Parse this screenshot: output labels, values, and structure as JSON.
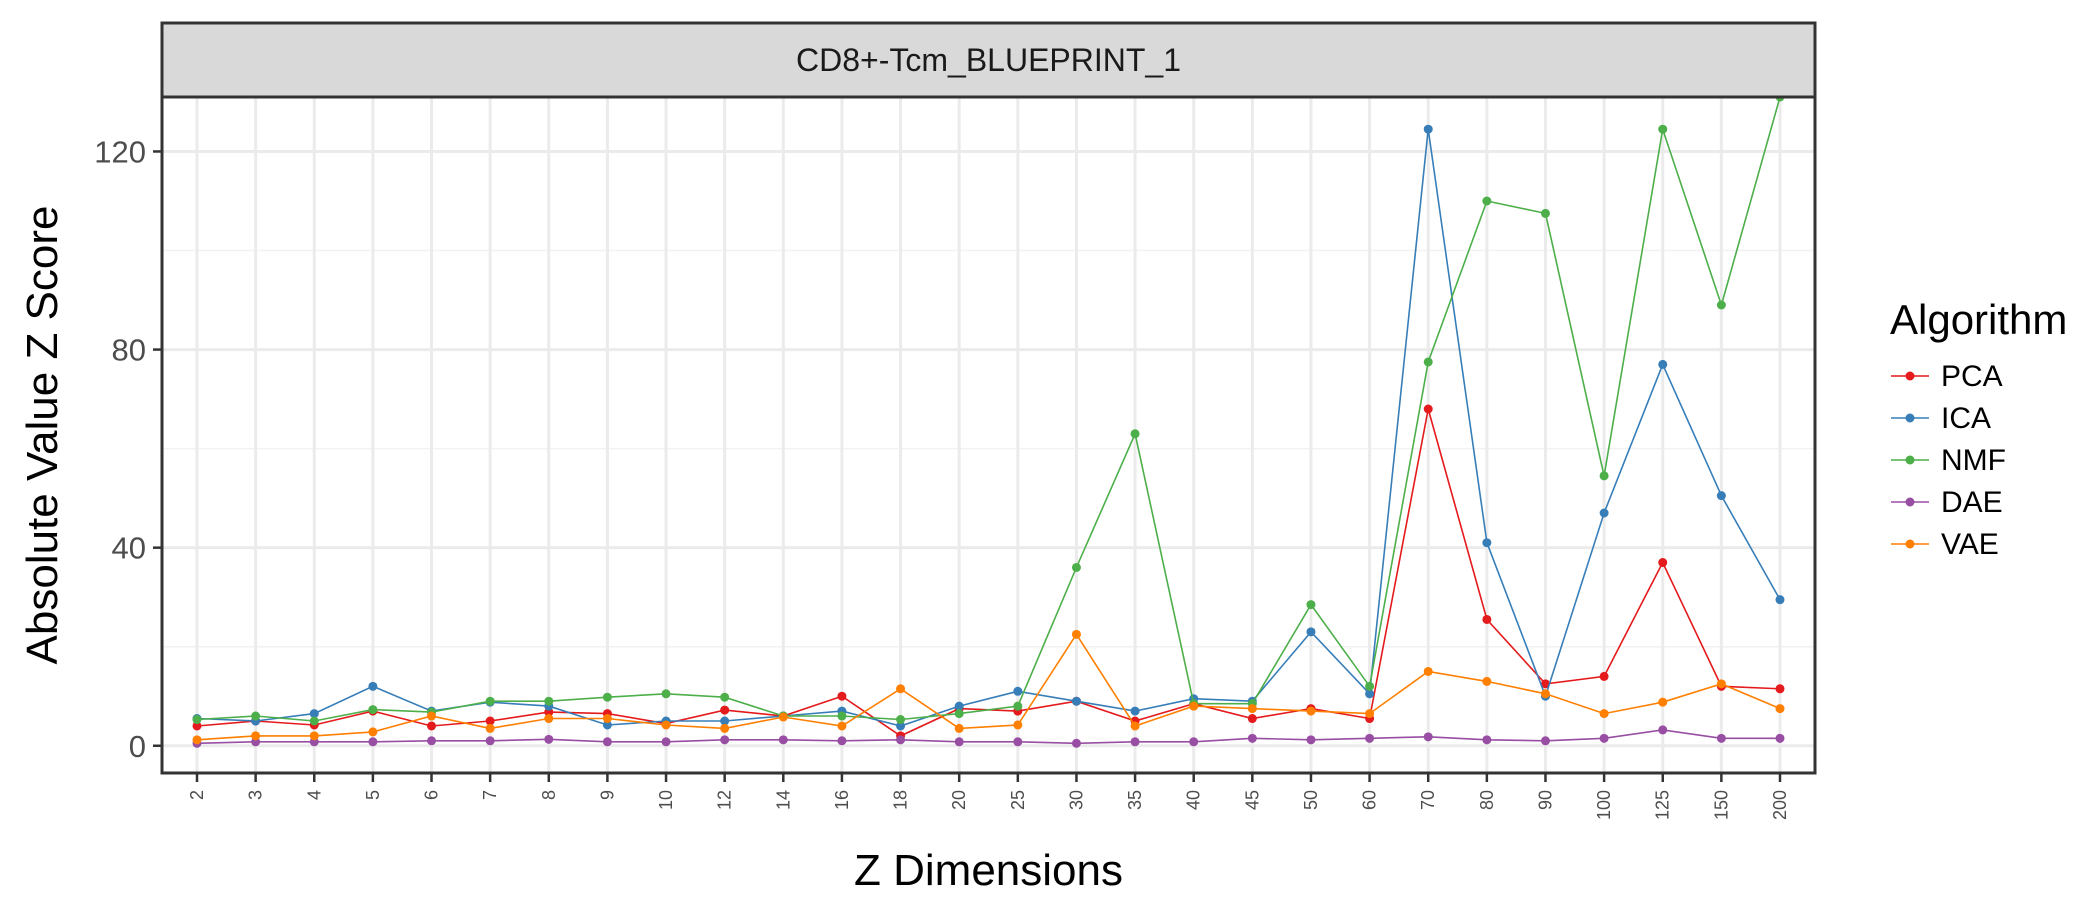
{
  "chart_data": {
    "type": "line",
    "title": "CD8+-Tcm_BLUEPRINT_1",
    "xlabel": "Z Dimensions",
    "ylabel": "Absolute Value Z Score",
    "categories": [
      "2",
      "3",
      "4",
      "5",
      "6",
      "7",
      "8",
      "9",
      "10",
      "12",
      "14",
      "16",
      "18",
      "20",
      "25",
      "30",
      "35",
      "40",
      "45",
      "50",
      "60",
      "70",
      "80",
      "90",
      "100",
      "125",
      "150",
      "200"
    ],
    "ylim": [
      -5.5,
      131
    ],
    "yticks": [
      0,
      40,
      80,
      120
    ],
    "grid": true,
    "legend": {
      "title": "Algorithm",
      "position": "right"
    },
    "series": [
      {
        "name": "PCA",
        "color": "#e41a1c",
        "values": [
          4,
          5,
          4.2,
          7,
          4,
          5,
          6.8,
          6.5,
          4.5,
          7.2,
          6,
          10,
          2,
          7.5,
          7,
          9,
          5,
          8.5,
          5.5,
          7.5,
          5.5,
          68,
          25.5,
          12.5,
          14,
          37,
          12,
          11.5
        ]
      },
      {
        "name": "ICA",
        "color": "#377eb8",
        "values": [
          5.5,
          5,
          6.5,
          12,
          7,
          8.8,
          8,
          4.2,
          5,
          5,
          6,
          7,
          4,
          8,
          11,
          9,
          7,
          9.5,
          9,
          23,
          10.5,
          124.5,
          41,
          10,
          47,
          77,
          50.5,
          29.5
        ]
      },
      {
        "name": "NMF",
        "color": "#4daf4a",
        "values": [
          5.3,
          6,
          5,
          7.3,
          6.8,
          9,
          9,
          9.8,
          10.5,
          9.8,
          6,
          6,
          5.3,
          6.5,
          8,
          36,
          63,
          8.5,
          8.5,
          28.5,
          12,
          77.5,
          110,
          107.5,
          54.5,
          124.5,
          89,
          131
        ]
      },
      {
        "name": "DAE",
        "color": "#984ea3",
        "values": [
          0.5,
          0.8,
          0.8,
          0.8,
          1,
          1,
          1.3,
          0.8,
          0.8,
          1.2,
          1.2,
          1,
          1.2,
          0.8,
          0.8,
          0.5,
          0.8,
          0.8,
          1.5,
          1.2,
          1.5,
          1.8,
          1.2,
          1,
          1.5,
          3.2,
          1.5,
          1.5
        ]
      },
      {
        "name": "VAE",
        "color": "#ff7f00",
        "values": [
          1.2,
          2,
          2,
          2.8,
          6,
          3.5,
          5.5,
          5.5,
          4.2,
          3.5,
          5.8,
          4,
          11.5,
          3.5,
          4.2,
          22.5,
          4,
          8,
          7.5,
          7,
          6.5,
          15,
          13,
          10.5,
          6.5,
          8.8,
          12.5,
          7.5
        ]
      }
    ]
  }
}
